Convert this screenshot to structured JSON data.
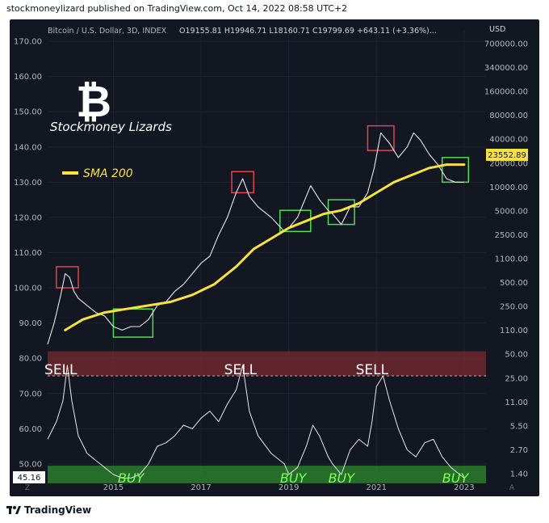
{
  "header": {
    "text": "stockmoneylizard published on TradingView.com, Oct 14, 2022 08:58 UTC+2"
  },
  "footer": {
    "brand": "TradingView"
  },
  "chart_data": {
    "type": "line",
    "title": "Bitcoin / U.S. Dollar, 3D, INDEX",
    "ohlc": "O19155.81 H19946.71 L18160.71 C19799.69 +643.11 (+3.36%)...",
    "watermark": "Stockmoney Lizards",
    "logo_glyph": "₿",
    "currency_label": "USD",
    "current_price_label": "23552.89",
    "current_indicator_label": "45.16",
    "sma_label": "SMA 200",
    "left_axis_ticks": [
      "170.00",
      "160.00",
      "150.00",
      "140.00",
      "130.00",
      "120.00",
      "110.00",
      "100.00",
      "90.00",
      "80.00",
      "70.00",
      "60.00",
      "50.00"
    ],
    "right_axis_ticks": [
      "700000.00",
      "340000.00",
      "160000.00",
      "80000.00",
      "40000.00",
      "20000.00",
      "10000.00",
      "5000.00",
      "2500.00",
      "1100.00",
      "500.00",
      "250.00",
      "110.00",
      "50.00",
      "25.00",
      "11.00",
      "5.50",
      "2.70",
      "1.40"
    ],
    "x_ticks": [
      "2015",
      "2017",
      "2019",
      "2021",
      "2023"
    ],
    "x_axis_corners": {
      "left": "Z",
      "right": "A"
    },
    "zones": {
      "sell_label": "SELL",
      "buy_label": "BUY"
    },
    "sell_labels": [
      {
        "year": 2013.8
      },
      {
        "year": 2017.9
      },
      {
        "year": 2020.9
      }
    ],
    "buy_labels": [
      {
        "year": 2015.4
      },
      {
        "year": 2019.1
      },
      {
        "year": 2020.2
      },
      {
        "year": 2022.8
      }
    ],
    "sell_boxes": [
      {
        "start": 2013.7,
        "end": 2014.2,
        "top": 106,
        "bottom": 100
      },
      {
        "start": 2017.7,
        "end": 2018.2,
        "top": 133,
        "bottom": 127
      },
      {
        "start": 2020.8,
        "end": 2021.4,
        "top": 146,
        "bottom": 139
      }
    ],
    "buy_boxes": [
      {
        "start": 2015.0,
        "end": 2015.9,
        "top": 94,
        "bottom": 86
      },
      {
        "start": 2018.8,
        "end": 2019.5,
        "top": 122,
        "bottom": 116
      },
      {
        "start": 2019.9,
        "end": 2020.5,
        "top": 125,
        "bottom": 118
      },
      {
        "start": 2022.5,
        "end": 2023.1,
        "top": 137,
        "bottom": 130
      }
    ],
    "x_range": [
      2013.5,
      2023.5
    ],
    "y_range": [
      47,
      173
    ],
    "price_series": {
      "x": [
        2013.5,
        2013.65,
        2013.8,
        2013.9,
        2014.0,
        2014.1,
        2014.2,
        2014.4,
        2014.6,
        2014.8,
        2015.0,
        2015.2,
        2015.4,
        2015.6,
        2015.8,
        2016.0,
        2016.2,
        2016.4,
        2016.6,
        2016.8,
        2017.0,
        2017.2,
        2017.4,
        2017.6,
        2017.8,
        2017.95,
        2018.1,
        2018.3,
        2018.6,
        2018.9,
        2019.0,
        2019.2,
        2019.4,
        2019.5,
        2019.7,
        2019.9,
        2020.0,
        2020.2,
        2020.4,
        2020.6,
        2020.8,
        2020.95,
        2021.1,
        2021.3,
        2021.5,
        2021.7,
        2021.85,
        2022.0,
        2022.2,
        2022.4,
        2022.6,
        2022.8,
        2023.0
      ],
      "y": [
        84,
        90,
        98,
        104,
        103,
        99,
        97,
        95,
        93,
        92,
        89,
        88,
        89,
        89,
        91,
        95,
        96,
        99,
        101,
        104,
        107,
        109,
        115,
        120,
        127,
        131,
        126,
        123,
        120,
        116,
        117,
        120,
        126,
        129,
        125,
        122,
        121,
        118,
        123,
        123,
        127,
        134,
        144,
        141,
        137,
        140,
        144,
        142,
        138,
        135,
        131,
        130,
        130
      ]
    },
    "sma_series": {
      "x": [
        2013.9,
        2014.3,
        2014.8,
        2015.3,
        2015.8,
        2016.3,
        2016.8,
        2017.3,
        2017.8,
        2018.2,
        2018.6,
        2019.0,
        2019.4,
        2019.8,
        2020.2,
        2020.6,
        2021.0,
        2021.4,
        2021.8,
        2022.2,
        2022.6,
        2023.0
      ],
      "y": [
        88,
        91,
        93,
        94,
        95,
        96,
        98,
        101,
        106,
        111,
        114,
        117,
        119,
        121,
        122,
        124,
        127,
        130,
        132,
        134,
        135,
        135
      ]
    },
    "indicator_series": {
      "x": [
        2013.5,
        2013.7,
        2013.85,
        2013.95,
        2014.05,
        2014.2,
        2014.4,
        2014.6,
        2014.8,
        2015.0,
        2015.2,
        2015.4,
        2015.6,
        2015.8,
        2016.0,
        2016.2,
        2016.4,
        2016.6,
        2016.8,
        2017.0,
        2017.2,
        2017.4,
        2017.6,
        2017.8,
        2017.95,
        2018.1,
        2018.3,
        2018.6,
        2018.9,
        2019.0,
        2019.2,
        2019.4,
        2019.55,
        2019.7,
        2019.9,
        2020.0,
        2020.2,
        2020.4,
        2020.6,
        2020.8,
        2020.9,
        2021.0,
        2021.15,
        2021.3,
        2021.5,
        2021.7,
        2021.9,
        2022.1,
        2022.3,
        2022.5,
        2022.7,
        2022.9,
        2023.0
      ],
      "y": [
        57,
        62,
        68,
        78,
        68,
        58,
        53,
        51,
        49,
        47,
        46,
        46,
        47,
        50,
        55,
        56,
        58,
        61,
        60,
        63,
        65,
        62,
        67,
        71,
        78,
        65,
        58,
        53,
        50,
        47,
        49,
        55,
        61,
        58,
        52,
        50,
        47,
        54,
        57,
        55,
        62,
        72,
        75,
        68,
        60,
        54,
        52,
        56,
        57,
        52,
        49,
        47,
        46
      ]
    },
    "zone_levels": {
      "sell": [
        75,
        82
      ],
      "buy": [
        44.5,
        49.5
      ]
    },
    "grid": true
  }
}
